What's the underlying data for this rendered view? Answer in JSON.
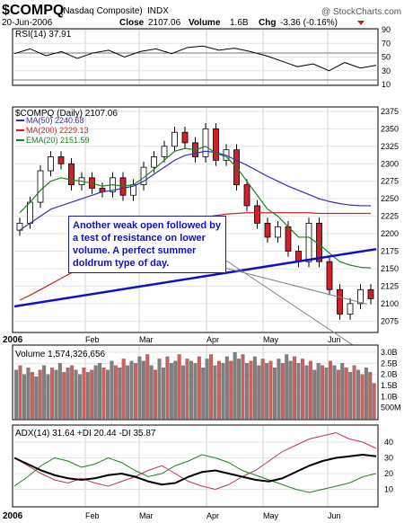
{
  "header": {
    "symbol": "$COMPQ",
    "name": "(Nasdaq Composite)",
    "exchange": "INDX",
    "date": "20-Jun-2006",
    "close_label": "Close",
    "close_value": "2107.06",
    "volume_label": "Volume",
    "volume_value": "1.6B",
    "chg_label": "Chg",
    "chg_value": "-3.36 (-0.16%)",
    "watermark": "@ StockCharts.com"
  },
  "rsi_panel": {
    "title": "RSI(14) 37.91",
    "ticks": [
      "90",
      "70",
      "50",
      "30",
      "10"
    ]
  },
  "price_panel": {
    "title": "$COMPQ (Daily) 2107.06",
    "legend": [
      {
        "label": "MA(50) 2240.68",
        "color": "#3030c0"
      },
      {
        "label": "MA(200) 2229.13",
        "color": "#d02020"
      },
      {
        "label": "EMA(20) 2151.59",
        "color": "#208020"
      }
    ],
    "ticks": [
      "2375",
      "2350",
      "2325",
      "2300",
      "2275",
      "2250",
      "2225",
      "2200",
      "2175",
      "2150",
      "2125",
      "2100",
      "2075"
    ],
    "annotation": "Another weak open followed by a test of resistance on lower volume.  A perfect summer doldrum type of day."
  },
  "month_labels_mid": [
    "2006",
    "Feb",
    "Mar",
    "Apr",
    "May",
    "Jun"
  ],
  "volume_panel": {
    "title": "Volume 1,574,326,656",
    "ticks": [
      "3.0B",
      "2.5B",
      "2.0B",
      "1.5B",
      "1.0B",
      "500M"
    ]
  },
  "adx_panel": {
    "title": "ADX(14) 31.64 +DI 20.44 -DI 35.87",
    "ticks": [
      "40",
      "30",
      "20",
      "10"
    ]
  },
  "month_labels_bottom": [
    "2006",
    "Feb",
    "Mar",
    "Apr",
    "May",
    "Jun"
  ],
  "colors": {
    "up_candle": "#ffffff",
    "down_candle": "#d0202a",
    "ma50": "#3030c0",
    "ma200": "#d02020",
    "ema20": "#208020",
    "trendline": "#1010c8",
    "vol_up": "#808080",
    "vol_down": "#d06060"
  },
  "chart_data": [
    {
      "type": "line",
      "name": "RSI(14)",
      "ylim": [
        10,
        90
      ],
      "x": [
        "Jan",
        "Jan",
        "Jan",
        "Jan",
        "Feb",
        "Feb",
        "Feb",
        "Feb",
        "Mar",
        "Mar",
        "Mar",
        "Mar",
        "Apr",
        "Apr",
        "Apr",
        "Apr",
        "May",
        "May",
        "May",
        "May",
        "Jun",
        "Jun",
        "Jun",
        "Jun"
      ],
      "values": [
        55,
        62,
        52,
        58,
        48,
        56,
        60,
        50,
        58,
        62,
        55,
        64,
        66,
        60,
        63,
        58,
        52,
        44,
        36,
        40,
        30,
        42,
        34,
        38
      ]
    },
    {
      "type": "line",
      "name": "$COMPQ Daily",
      "ylim": [
        2060,
        2380
      ],
      "trendline": [
        [
          0,
          2096
        ],
        [
          1,
          2178
        ]
      ],
      "annotation_target": "Jun",
      "close": [
        2215,
        2245,
        2290,
        2310,
        2300,
        2270,
        2280,
        2265,
        2260,
        2280,
        2255,
        2270,
        2295,
        2310,
        2325,
        2345,
        2330,
        2310,
        2350,
        2305,
        2320,
        2270,
        2240,
        2215,
        2195,
        2210,
        2175,
        2160,
        2215,
        2160,
        2120,
        2085,
        2100,
        2120,
        2107
      ],
      "ma50": [
        2205,
        2215,
        2225,
        2235,
        2240,
        2245,
        2250,
        2255,
        2260,
        2262,
        2265,
        2268,
        2275,
        2285,
        2295,
        2305,
        2312,
        2315,
        2318,
        2316,
        2312,
        2305,
        2298,
        2290,
        2282,
        2275,
        2268,
        2262,
        2256,
        2250,
        2246,
        2243,
        2241,
        2240,
        2240
      ],
      "ma200": [
        2105,
        2112,
        2120,
        2128,
        2136,
        2144,
        2152,
        2160,
        2168,
        2176,
        2184,
        2190,
        2196,
        2202,
        2208,
        2213,
        2217,
        2221,
        2224,
        2226,
        2228,
        2229,
        2230,
        2230,
        2230,
        2230,
        2230,
        2230,
        2230,
        2229,
        2229,
        2229,
        2229,
        2229,
        2229
      ],
      "ema20": [
        2230,
        2245,
        2262,
        2275,
        2280,
        2277,
        2275,
        2272,
        2268,
        2270,
        2268,
        2270,
        2280,
        2292,
        2305,
        2318,
        2322,
        2320,
        2325,
        2315,
        2310,
        2295,
        2275,
        2255,
        2235,
        2225,
        2210,
        2195,
        2195,
        2185,
        2172,
        2160,
        2155,
        2152,
        2151
      ]
    },
    {
      "type": "bar",
      "name": "Volume",
      "ylim": [
        0,
        3.0
      ],
      "unit": "B",
      "values": [
        2.2,
        2.4,
        2.0,
        2.3,
        2.1,
        1.9,
        2.2,
        2.4,
        2.0,
        2.3,
        2.2,
        2.5,
        2.1,
        2.3,
        2.4,
        2.2,
        2.0,
        2.3,
        2.1,
        2.2,
        2.4,
        2.5,
        2.3,
        2.2,
        2.6,
        2.4,
        2.3,
        2.7,
        2.4,
        2.6,
        2.5,
        2.8,
        2.6,
        2.9,
        2.4,
        2.2,
        2.7,
        2.3,
        2.8,
        2.5,
        2.6,
        2.9,
        2.4,
        2.7,
        2.6,
        2.5,
        2.8,
        2.3,
        2.7,
        2.9,
        2.4,
        2.6,
        2.5,
        2.8,
        2.6,
        3.0,
        2.7,
        2.9,
        2.5,
        2.6,
        2.8,
        2.4,
        2.7,
        2.5,
        2.6,
        2.3,
        2.7,
        2.5,
        2.9,
        2.6,
        2.8,
        2.5,
        2.7,
        2.4,
        2.6,
        2.2,
        2.5,
        2.4,
        2.3,
        2.6,
        2.4,
        2.2,
        2.5,
        2.3,
        2.1,
        2.4,
        2.2,
        2.0,
        2.3,
        2.1,
        1.6
      ],
      "down_days": [
        1,
        4,
        6,
        9,
        12,
        14,
        17,
        19,
        22,
        25,
        27,
        30,
        33,
        35,
        38,
        41,
        43,
        46,
        49,
        51,
        54,
        57,
        59,
        62,
        64,
        67,
        70,
        72,
        74,
        77,
        79,
        81,
        83,
        85,
        87,
        89,
        90
      ]
    },
    {
      "type": "line",
      "name": "ADX(14)",
      "ylim": [
        0,
        48
      ],
      "series": [
        {
          "name": "ADX(14)",
          "values": [
            30,
            26,
            22,
            19,
            17,
            16,
            17,
            19,
            20,
            18,
            15,
            13,
            14,
            18,
            21,
            22,
            20,
            18,
            16,
            15,
            17,
            21,
            25,
            28,
            30,
            31,
            32,
            31
          ]
        },
        {
          "name": "+DI",
          "values": [
            12,
            18,
            25,
            30,
            28,
            24,
            26,
            30,
            27,
            22,
            18,
            20,
            25,
            28,
            32,
            30,
            27,
            22,
            19,
            16,
            13,
            10,
            8,
            10,
            12,
            14,
            18,
            20
          ]
        },
        {
          "name": "-DI",
          "values": [
            30,
            25,
            20,
            16,
            14,
            17,
            14,
            12,
            15,
            18,
            22,
            25,
            20,
            15,
            12,
            10,
            13,
            18,
            22,
            28,
            34,
            38,
            42,
            44,
            46,
            42,
            40,
            36
          ]
        }
      ]
    }
  ]
}
